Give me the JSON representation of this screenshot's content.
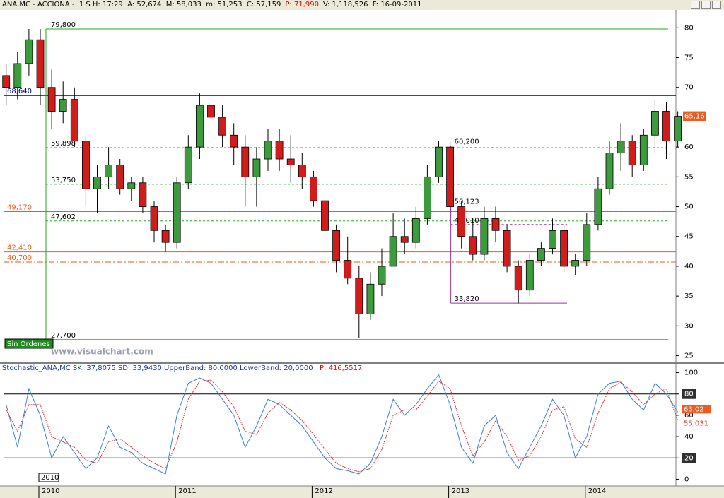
{
  "header": [
    {
      "text": "ANA,MC - ACCIONA -  1 S H: 17:29  A: 52,674  M: 58,033  m: 51,253  C: 57,159",
      "color": "#000000"
    },
    {
      "text": "P: 71,990",
      "color": "#e00000"
    },
    {
      "text": "V: 1,118,526  F: 16-09-2011",
      "color": "#000000"
    }
  ],
  "watermark": "www.visualchart.com",
  "orders_button": "Sin Órdenes",
  "cursor_label": "2010",
  "chart_data": [
    {
      "type": "candlestick",
      "categories": [
        null,
        null,
        null,
        "2010",
        null,
        null,
        null,
        null,
        null,
        null,
        null,
        null,
        null,
        null,
        null,
        "2011",
        null,
        null,
        null,
        null,
        null,
        null,
        null,
        null,
        null,
        null,
        null,
        "2012",
        null,
        null,
        null,
        null,
        null,
        null,
        null,
        null,
        null,
        null,
        null,
        "2013",
        null,
        null,
        null,
        null,
        null,
        null,
        null,
        null,
        null,
        null,
        null,
        "2014",
        null,
        null,
        null,
        null,
        null,
        null,
        null,
        null
      ],
      "open": [
        72,
        70,
        74,
        78,
        70,
        66,
        68,
        61,
        53,
        55,
        57,
        53,
        54,
        50,
        46,
        44,
        54,
        60,
        67,
        65,
        62,
        60,
        55,
        58,
        61,
        58,
        57,
        55,
        51,
        46,
        41,
        38,
        32,
        37,
        40,
        45,
        44,
        48,
        55,
        60,
        50,
        45,
        42,
        48,
        46,
        40,
        36,
        41,
        43,
        46,
        40,
        41,
        47,
        53,
        59,
        61,
        57,
        62,
        66,
        61
      ],
      "high": [
        74,
        76,
        79.8,
        79.8,
        73,
        71,
        70,
        62,
        57,
        60,
        58,
        55,
        55,
        51,
        47,
        55,
        62,
        69,
        69,
        67,
        64,
        62,
        60,
        63,
        63,
        62,
        59,
        56,
        52,
        47,
        45,
        40,
        39,
        43,
        49,
        48,
        50,
        57,
        61,
        61,
        51,
        48,
        50,
        50,
        47,
        41,
        42,
        44,
        48,
        47,
        42,
        49,
        55,
        61,
        64,
        62,
        63,
        68,
        67.5,
        66
      ],
      "low": [
        67,
        68,
        72,
        67,
        63,
        64,
        60,
        50,
        49,
        53,
        52,
        51,
        49,
        44,
        42.4,
        43,
        53,
        58,
        63,
        60,
        57,
        50,
        50,
        56,
        56,
        54,
        53,
        50,
        44,
        39,
        37,
        28,
        31,
        35,
        40,
        42,
        43,
        47,
        54,
        49,
        43,
        41,
        41,
        44,
        39,
        33.8,
        35,
        40,
        42,
        39,
        38.5,
        40,
        46,
        52,
        56,
        55,
        56,
        59,
        58,
        60
      ],
      "close": [
        70,
        74,
        78,
        70,
        66,
        68,
        61,
        53,
        55,
        57,
        53,
        54,
        50,
        46,
        44,
        54,
        60,
        67,
        65,
        62,
        60,
        55,
        58,
        61,
        58,
        57,
        55,
        51,
        46,
        41,
        38,
        32,
        37,
        40,
        45,
        44,
        48,
        55,
        60,
        50,
        45,
        42,
        48,
        46,
        40,
        36,
        41,
        43,
        46,
        40,
        41,
        47,
        53,
        59,
        61,
        57,
        62,
        66,
        61,
        65.16
      ],
      "up_color": "#3c9b3c",
      "down_color": "#d21c1c",
      "ylim": [
        24,
        83
      ],
      "yticks": [
        25,
        30,
        35,
        40,
        45,
        50,
        55,
        60,
        65,
        70,
        75,
        80
      ],
      "last_label": {
        "value": 65.16,
        "label": "65,16",
        "color": "#f05a1e"
      },
      "range_levels": [
        {
          "value": 79.8,
          "label": "79,800",
          "color": "#22aa22",
          "style": "solid"
        },
        {
          "value": 59.898,
          "label": "59,898",
          "color": "#22aa22",
          "style": "dashed"
        },
        {
          "value": 53.75,
          "label": "53,750",
          "color": "#22aa22",
          "style": "dashed"
        },
        {
          "value": 47.602,
          "label": "47,602",
          "color": "#22aa22",
          "style": "dashed"
        },
        {
          "value": 27.7,
          "label": "27,700",
          "color": "#22aa22",
          "style": "solid"
        }
      ],
      "support_levels": [
        {
          "value": 68.64,
          "label": "68,640",
          "color": "#000080",
          "style": "solid"
        },
        {
          "value": 49.17,
          "label": "49,170",
          "color": "#f05a1e",
          "style": "solid"
        },
        {
          "value": 42.41,
          "label": "42,410",
          "color": "#f05a1e",
          "style": "solid"
        },
        {
          "value": 40.7,
          "label": "40,700",
          "color": "#f05a1e",
          "style": "dashdot"
        }
      ],
      "fib_levels": [
        {
          "value": 60.2,
          "label": "60,200",
          "color": "#9933aa",
          "style": "solid"
        },
        {
          "value": 50.123,
          "label": "50,123",
          "color": "#9933aa",
          "style": "dashed"
        },
        {
          "value": 47.01,
          "label": "47,010",
          "color": "#9933aa",
          "style": "dashed"
        },
        {
          "value": 33.82,
          "label": "33,820",
          "color": "#9933aa",
          "style": "solid"
        }
      ]
    },
    {
      "type": "line",
      "title": "Stochastic_ANA,MC SK: 37,8075 SD: 33,9430 UpperBand: 80,0000 LowerBand: 20,0000",
      "title_extra": "P: 416,5517",
      "series": [
        {
          "name": "SK",
          "color": "#3a7fd5",
          "last_label": "63,02",
          "values": [
            70,
            30,
            85,
            60,
            20,
            40,
            25,
            10,
            20,
            50,
            30,
            25,
            15,
            10,
            5,
            60,
            90,
            95,
            90,
            75,
            60,
            30,
            50,
            75,
            70,
            60,
            50,
            35,
            20,
            10,
            8,
            5,
            15,
            40,
            75,
            60,
            70,
            85,
            98,
            70,
            30,
            15,
            50,
            60,
            25,
            10,
            30,
            50,
            75,
            60,
            20,
            40,
            80,
            90,
            92,
            75,
            65,
            90,
            80,
            63.02
          ]
        },
        {
          "name": "SD",
          "color": "#e03030",
          "last_label": "55,031",
          "values": [
            65,
            45,
            70,
            70,
            40,
            35,
            30,
            18,
            15,
            35,
            38,
            30,
            22,
            15,
            10,
            35,
            75,
            92,
            93,
            82,
            68,
            45,
            42,
            62,
            72,
            65,
            55,
            42,
            28,
            15,
            10,
            7,
            10,
            28,
            60,
            65,
            65,
            78,
            92,
            85,
            50,
            22,
            35,
            55,
            40,
            18,
            22,
            40,
            65,
            68,
            38,
            30,
            62,
            85,
            91,
            82,
            70,
            80,
            85,
            55.031
          ]
        }
      ],
      "bands": [
        80,
        20
      ],
      "ylim": [
        -5,
        105
      ],
      "yticks": [
        0,
        20,
        40,
        60,
        80,
        100
      ]
    }
  ]
}
